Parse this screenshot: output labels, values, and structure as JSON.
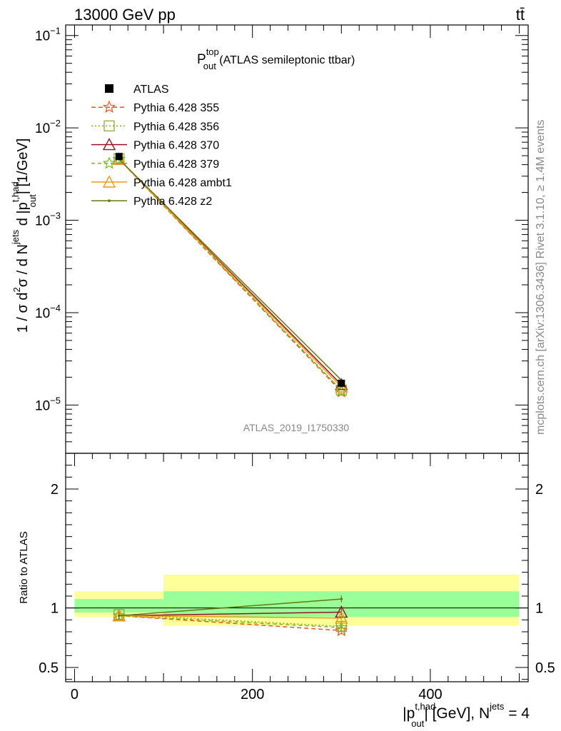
{
  "header": {
    "energy_label": "13000 GeV pp",
    "process_label": "tt̄"
  },
  "side_labels": {
    "rivet": "Rivet 3.1.10, ≥ 1.4M events",
    "mcplots": "mcplots.cern.ch [arXiv:1306.3436]"
  },
  "watermark": "ATLAS_2019_I1750330",
  "chart_data": [
    {
      "type": "line",
      "title": {
        "main": "P",
        "sup": "top",
        "sub": "out",
        "rest": " (ATLAS semileptonic ttbar)"
      },
      "ylabel": {
        "a": "1 / σ d",
        "b": "σ / d N",
        "c": " d |p",
        "d": "| [1/GeV]",
        "sup2": "2",
        "supjets": "jets",
        "supthad": "t,had",
        "subout": "out"
      },
      "yscale": "log",
      "ylim": [
        3e-06,
        0.13
      ],
      "xlim": [
        -10,
        510
      ],
      "yticks": [
        {
          "mant": "10",
          "exp": "−1",
          "v": 0.1
        },
        {
          "mant": "10",
          "exp": "−2",
          "v": 0.01
        },
        {
          "mant": "10",
          "exp": "−3",
          "v": 0.001
        },
        {
          "mant": "10",
          "exp": "−4",
          "v": 0.0001
        },
        {
          "mant": "10",
          "exp": "−5",
          "v": 1e-05
        }
      ],
      "x": [
        50,
        300
      ],
      "data": {
        "name": "ATLAS",
        "values": [
          0.0049,
          1.72e-05
        ]
      },
      "series": [
        {
          "name": "Pythia 6.428 355",
          "color": "#ee5511",
          "dash": "6,4",
          "marker": "star",
          "values": [
            0.00458,
            1.39e-05
          ]
        },
        {
          "name": "Pythia 6.428 356",
          "color": "#88aa22",
          "dash": "2,3",
          "marker": "square",
          "values": [
            0.00463,
            1.45e-05
          ]
        },
        {
          "name": "Pythia 6.428 370",
          "color": "#991122",
          "dash": "",
          "marker": "triangle",
          "values": [
            0.00458,
            1.66e-05
          ]
        },
        {
          "name": "Pythia 6.428 379",
          "color": "#77bb22",
          "dash": "5,4",
          "marker": "star",
          "values": [
            0.00458,
            1.44e-05
          ]
        },
        {
          "name": "Pythia 6.428 ambt1",
          "color": "#ee9911",
          "dash": "",
          "marker": "triangle",
          "values": [
            0.00458,
            1.57e-05
          ]
        },
        {
          "name": "Pythia 6.428 z2",
          "color": "#667711",
          "dash": "",
          "marker": "dot",
          "values": [
            0.00458,
            1.86e-05
          ]
        }
      ]
    },
    {
      "type": "line",
      "ylabel": "Ratio to ATLAS",
      "xlabel": {
        "a": "|p",
        "supthad": "t,had",
        "subout": "out",
        "b": "| [GeV], N",
        "supjets": "jets",
        "c": " = 4"
      },
      "ylim": [
        0.38,
        2.3
      ],
      "xlim": [
        -10,
        510
      ],
      "yticks": [
        {
          "label": "0.5",
          "v": 0.5
        },
        {
          "label": "1",
          "v": 1
        },
        {
          "label": "2",
          "v": 2
        }
      ],
      "xticks": [
        {
          "label": "0",
          "v": 0
        },
        {
          "label": "200",
          "v": 200
        },
        {
          "label": "400",
          "v": 400
        }
      ],
      "bands": [
        {
          "x": [
            0,
            100
          ],
          "yellow": [
            0.925,
            1.14
          ],
          "green": [
            0.962,
            1.075
          ]
        },
        {
          "x": [
            100,
            500
          ],
          "yellow": [
            0.85,
            1.28
          ],
          "green": [
            0.925,
            1.14
          ]
        }
      ],
      "x": [
        50,
        300
      ],
      "series": [
        {
          "name": "Pythia 6.428 355",
          "values": [
            0.935,
            0.81
          ]
        },
        {
          "name": "Pythia 6.428 356",
          "values": [
            0.945,
            0.845
          ]
        },
        {
          "name": "Pythia 6.428 370",
          "values": [
            0.935,
            0.965
          ]
        },
        {
          "name": "Pythia 6.428 379",
          "values": [
            0.935,
            0.835
          ]
        },
        {
          "name": "Pythia 6.428 ambt1",
          "values": [
            0.935,
            0.915
          ]
        },
        {
          "name": "Pythia 6.428 z2",
          "values": [
            0.935,
            1.075
          ]
        }
      ]
    }
  ]
}
